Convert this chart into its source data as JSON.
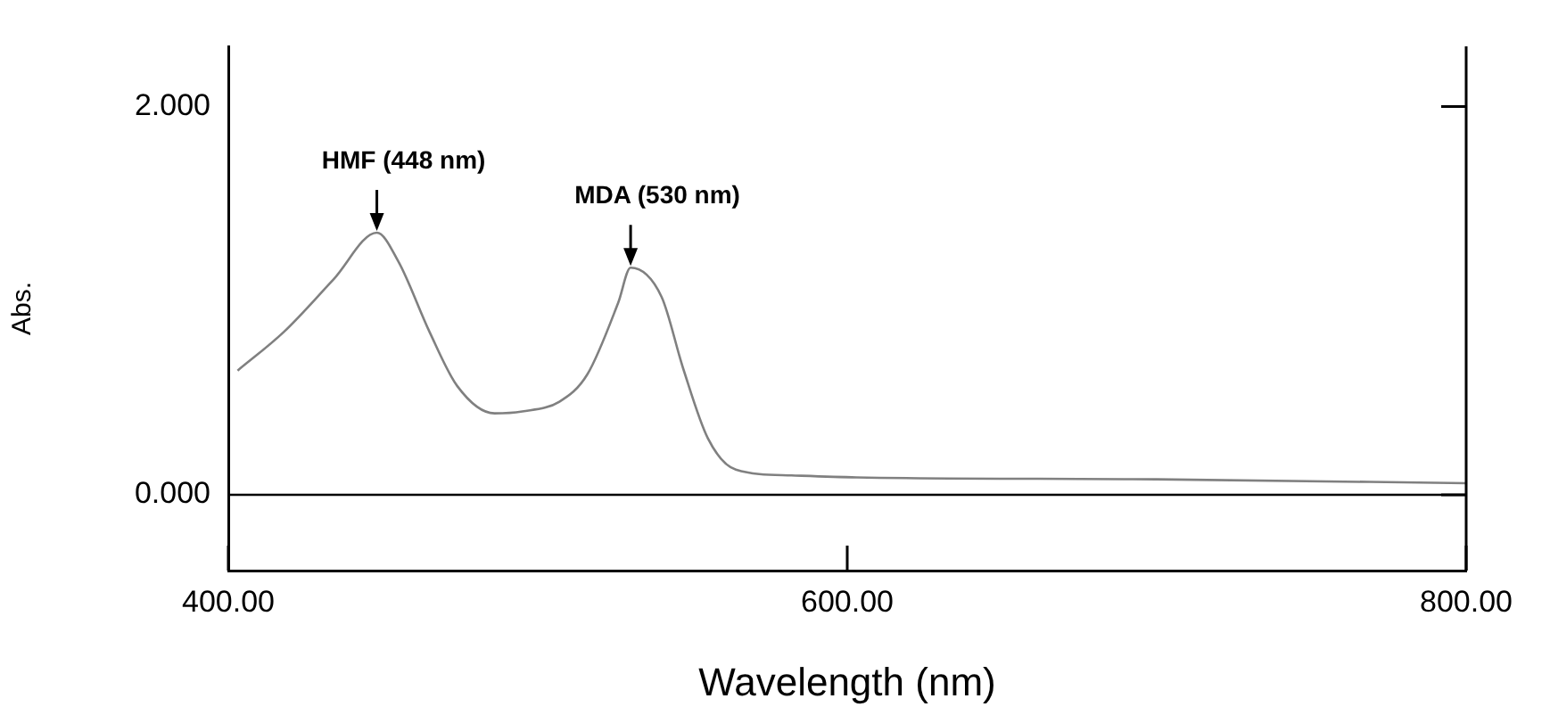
{
  "chart_data": {
    "type": "line",
    "xlabel": "Wavelength (nm)",
    "ylabel": "Abs.",
    "x": [
      403,
      418,
      434,
      448,
      455,
      465,
      474,
      486,
      495,
      507,
      516,
      526,
      530,
      540,
      547,
      555,
      564,
      582,
      603,
      700,
      800
    ],
    "series": [
      {
        "color": "#808080",
        "values": [
          0.64,
          0.84,
          1.11,
          1.35,
          1.2,
          0.84,
          0.56,
          0.42,
          0.43,
          0.48,
          0.62,
          0.99,
          1.17,
          1.02,
          0.65,
          0.29,
          0.13,
          0.1,
          0.09,
          0.08,
          0.06
        ]
      }
    ],
    "xlim": [
      400,
      800
    ],
    "xticks": [
      {
        "value": 400,
        "label": "400.00"
      },
      {
        "value": 600,
        "label": "600.00"
      },
      {
        "value": 800,
        "label": "800.00"
      }
    ],
    "ylim": [
      -0.39,
      2.31
    ],
    "yticks": [
      {
        "value": 0,
        "label": "0.000"
      },
      {
        "value": 2,
        "label": "2.000"
      }
    ],
    "ref_lines": [
      {
        "axis": "y",
        "value": 0,
        "color": "#000000"
      }
    ],
    "annotations": [
      {
        "text": "HMF (448 nm)",
        "x": 448,
        "y": 1.35
      },
      {
        "text": "MDA (530 nm)",
        "x": 530,
        "y": 1.17
      }
    ],
    "grid": false,
    "legend": false,
    "marker": "none",
    "line_style": "solid"
  }
}
